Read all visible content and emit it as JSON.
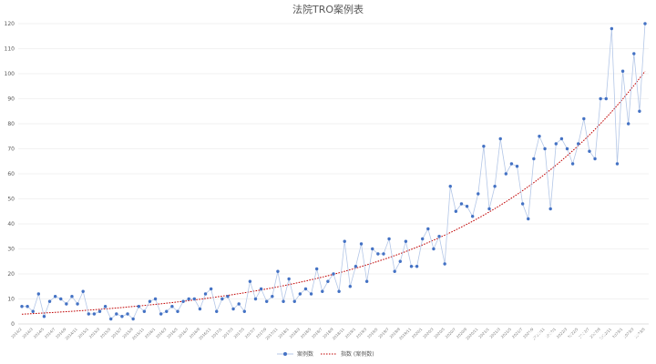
{
  "chart_data": {
    "type": "line",
    "title": "法院TRO案例表",
    "xlabel": "",
    "ylabel": "",
    "ylim": [
      0,
      120
    ],
    "yticks": [
      0,
      10,
      20,
      30,
      40,
      50,
      60,
      70,
      80,
      90,
      100,
      110,
      120
    ],
    "grid": true,
    "legend": "bottom",
    "x_tick_labels": [
      "2014/2",
      "2014/3",
      "2014/5",
      "2014/7",
      "2014/9",
      "2014/11",
      "2015/1",
      "2015/3",
      "2015/5",
      "2015/7",
      "2015/9",
      "2015/11",
      "2016/1",
      "2016/3",
      "2016/5",
      "2016/7",
      "2016/9",
      "2016/11",
      "2017/1",
      "2017/3",
      "2017/5",
      "2017/7",
      "2017/9",
      "2017/11",
      "2018/1",
      "2018/3",
      "2018/5",
      "2018/7",
      "2018/9",
      "2018/11",
      "2019/1",
      "2019/3",
      "2019/5",
      "2019/7",
      "2019/9",
      "2019/11",
      "2020/1",
      "2020/3",
      "2020/5",
      "2020/7",
      "2020/9",
      "2020/11",
      "2021/1",
      "2021/3",
      "2021/5",
      "2021/7",
      "2021/9",
      "2021/11",
      "2022/1",
      "2022/3",
      "2022/5",
      "2022/7",
      "2022/9",
      "2022/11",
      "2023/1",
      "2023/3",
      "2023/5"
    ],
    "series": [
      {
        "name": "案例数",
        "kind": "line-with-markers",
        "color": "#4472c4",
        "line_color": "#b4c7e7",
        "values": [
          7,
          7,
          5,
          12,
          3,
          9,
          11,
          10,
          8,
          11,
          8,
          13,
          4,
          4,
          5,
          7,
          2,
          4,
          3,
          4,
          2,
          7,
          5,
          9,
          10,
          4,
          5,
          7,
          5,
          9,
          10,
          10,
          6,
          12,
          14,
          5,
          10,
          11,
          6,
          8,
          5,
          17,
          10,
          14,
          9,
          11,
          21,
          9,
          18,
          9,
          12,
          14,
          12,
          22,
          13,
          17,
          20,
          13,
          33,
          15,
          23,
          32,
          17,
          30,
          28,
          28,
          34,
          21,
          25,
          33,
          23,
          23,
          34,
          38,
          30,
          35,
          24,
          55,
          45,
          48,
          47,
          43,
          52,
          71,
          46,
          55,
          74,
          60,
          64,
          63,
          48,
          42,
          66,
          75,
          70,
          46,
          72,
          74,
          70,
          64,
          72,
          82,
          69,
          66,
          90,
          90,
          118,
          64,
          101,
          80,
          108,
          85,
          120
        ]
      },
      {
        "name": "指数 (案例数)",
        "kind": "exponential-trendline",
        "color": "#c00000",
        "trend_start": 3.9,
        "trend_end": 101
      }
    ]
  },
  "watermark": "知乎 @客观ERIC"
}
